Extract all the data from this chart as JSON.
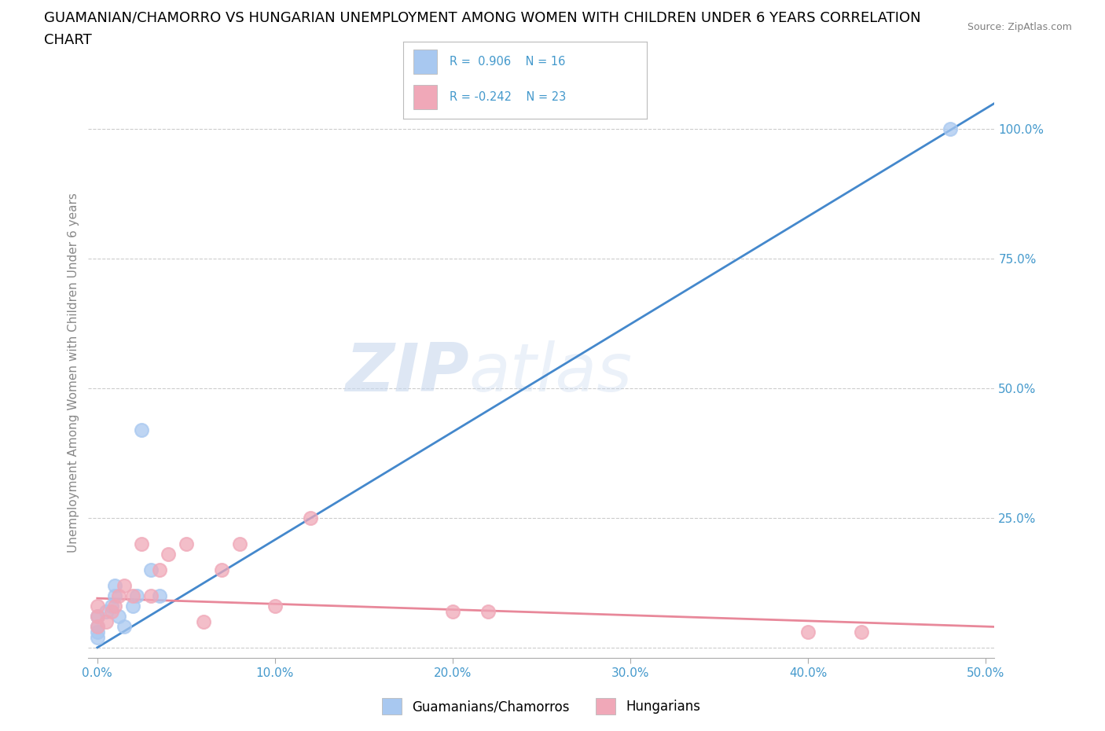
{
  "title_line1": "GUAMANIAN/CHAMORRO VS HUNGARIAN UNEMPLOYMENT AMONG WOMEN WITH CHILDREN UNDER 6 YEARS CORRELATION",
  "title_line2": "CHART",
  "source_text": "Source: ZipAtlas.com",
  "ylabel": "Unemployment Among Women with Children Under 6 years",
  "xlim": [
    -0.005,
    0.505
  ],
  "ylim": [
    -0.02,
    1.08
  ],
  "xtick_vals": [
    0.0,
    0.1,
    0.2,
    0.3,
    0.4,
    0.5
  ],
  "xtick_labels": [
    "0.0%",
    "10.0%",
    "20.0%",
    "30.0%",
    "40.0%",
    "50.0%"
  ],
  "ytick_vals": [
    0.0,
    0.25,
    0.5,
    0.75,
    1.0
  ],
  "ytick_labels": [
    "",
    "25.0%",
    "50.0%",
    "75.0%",
    "100.0%"
  ],
  "guamanian_scatter_x": [
    0.0,
    0.0,
    0.0,
    0.0,
    0.005,
    0.008,
    0.01,
    0.01,
    0.012,
    0.015,
    0.02,
    0.022,
    0.025,
    0.03,
    0.035,
    0.48
  ],
  "guamanian_scatter_y": [
    0.02,
    0.03,
    0.04,
    0.06,
    0.07,
    0.08,
    0.1,
    0.12,
    0.06,
    0.04,
    0.08,
    0.1,
    0.42,
    0.15,
    0.1,
    1.0
  ],
  "hungarian_scatter_x": [
    0.0,
    0.0,
    0.0,
    0.005,
    0.008,
    0.01,
    0.012,
    0.015,
    0.02,
    0.025,
    0.03,
    0.035,
    0.04,
    0.05,
    0.06,
    0.07,
    0.08,
    0.1,
    0.12,
    0.2,
    0.22,
    0.4,
    0.43
  ],
  "hungarian_scatter_y": [
    0.04,
    0.06,
    0.08,
    0.05,
    0.07,
    0.08,
    0.1,
    0.12,
    0.1,
    0.2,
    0.1,
    0.15,
    0.18,
    0.2,
    0.05,
    0.15,
    0.2,
    0.08,
    0.25,
    0.07,
    0.07,
    0.03,
    0.03
  ],
  "blue_line_x": [
    0.0,
    0.505
  ],
  "blue_line_y": [
    0.0,
    1.05
  ],
  "pink_line_x": [
    0.0,
    0.505
  ],
  "pink_line_y": [
    0.095,
    0.04
  ],
  "guam_color": "#a8c8f0",
  "hung_color": "#f0a8b8",
  "blue_line_color": "#4488cc",
  "pink_line_color": "#e8889a",
  "watermark_zip": "ZIP",
  "watermark_atlas": "atlas",
  "legend_text_guam": "R =  0.906    N = 16",
  "legend_text_hung": "R = -0.242    N = 23",
  "legend_label_guam": "Guamanians/Chamorros",
  "legend_label_hung": "Hungarians",
  "grid_color": "#cccccc",
  "background_color": "#ffffff",
  "title_fontsize": 13,
  "axis_label_fontsize": 11,
  "tick_fontsize": 11,
  "legend_fontsize": 12,
  "tick_color": "#4499cc",
  "axis_label_color": "#888888"
}
